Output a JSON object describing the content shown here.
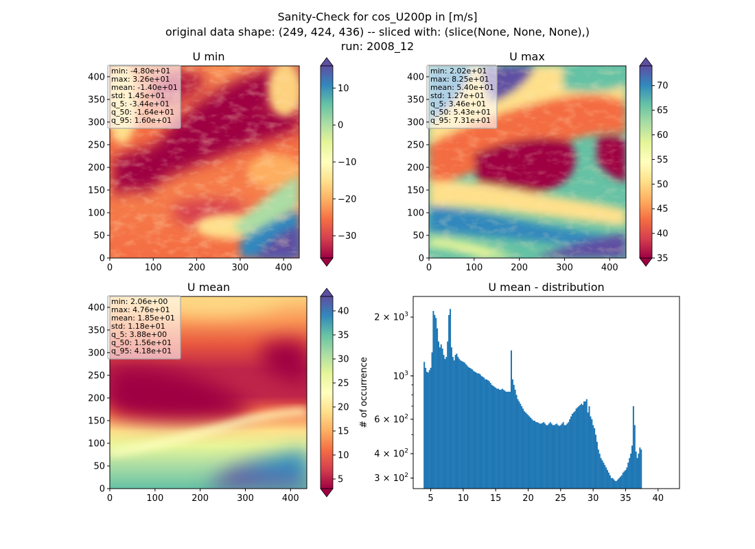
{
  "figure": {
    "title_lines": [
      "Sanity-Check for cos_U200p in [m/s]",
      "original data shape: (249, 424, 436) -- sliced with: (slice(None, None, None),)",
      "run: 2008_12"
    ]
  },
  "chart_data": [
    {
      "id": "umin",
      "type": "heatmap",
      "title": "U min",
      "xlim": [
        0,
        436
      ],
      "ylim": [
        0,
        424
      ],
      "xticks": [
        "0",
        "100",
        "200",
        "300",
        "400"
      ],
      "yticks": [
        "0",
        "50",
        "100",
        "150",
        "200",
        "250",
        "300",
        "350",
        "400"
      ],
      "colorbar": {
        "min": -36,
        "max": 16,
        "ticks": [
          "−30",
          "−20",
          "−10",
          "0",
          "10"
        ],
        "tick_values": [
          -30,
          -20,
          -10,
          0,
          10
        ],
        "extend": "both"
      },
      "stats": [
        "min: -4.80e+01",
        "max: 3.26e+01",
        "mean: -1.40e+01",
        "std: 1.45e+01",
        "q_5: -3.44e+01",
        "q_50: -1.64e+01",
        "q_95: 1.60e+01"
      ]
    },
    {
      "id": "umax",
      "type": "heatmap",
      "title": "U max",
      "xlim": [
        0,
        436
      ],
      "ylim": [
        0,
        424
      ],
      "xticks": [
        "0",
        "100",
        "200",
        "300",
        "400"
      ],
      "yticks": [
        "0",
        "50",
        "100",
        "150",
        "200",
        "250",
        "300",
        "350",
        "400"
      ],
      "colorbar": {
        "min": 35,
        "max": 74,
        "ticks": [
          "35",
          "40",
          "45",
          "50",
          "55",
          "60",
          "65",
          "70"
        ],
        "tick_values": [
          35,
          40,
          45,
          50,
          55,
          60,
          65,
          70
        ],
        "extend": "both"
      },
      "stats": [
        "min: 2.02e+01",
        "max: 8.25e+01",
        "mean: 5.40e+01",
        "std: 1.27e+01",
        "q_5: 3.46e+01",
        "q_50: 5.43e+01",
        "q_95: 7.31e+01"
      ]
    },
    {
      "id": "umean",
      "type": "heatmap",
      "title": "U mean",
      "xlim": [
        0,
        436
      ],
      "ylim": [
        0,
        424
      ],
      "xticks": [
        "0",
        "100",
        "200",
        "300",
        "400"
      ],
      "yticks": [
        "0",
        "50",
        "100",
        "150",
        "200",
        "250",
        "300",
        "350",
        "400"
      ],
      "colorbar": {
        "min": 3,
        "max": 43,
        "ticks": [
          "5",
          "10",
          "15",
          "20",
          "25",
          "30",
          "35",
          "40"
        ],
        "tick_values": [
          5,
          10,
          15,
          20,
          25,
          30,
          35,
          40
        ],
        "extend": "both"
      },
      "stats": [
        "min: 2.06e+00",
        "max: 4.76e+01",
        "mean: 1.85e+01",
        "std: 1.18e+01",
        "q_5: 3.88e+00",
        "q_50: 1.56e+01",
        "q_95: 4.18e+01"
      ]
    },
    {
      "id": "hist",
      "type": "bar",
      "title": "U mean - distribution",
      "ylabel": "# of occurrence",
      "yscale": "log",
      "xlim": [
        2.3,
        43.3
      ],
      "ylim": [
        265,
        2550
      ],
      "xticks": [
        "5",
        "10",
        "15",
        "20",
        "25",
        "30",
        "35",
        "40"
      ],
      "xtick_values": [
        5,
        10,
        15,
        20,
        25,
        30,
        35,
        40
      ],
      "yticks": [
        {
          "value": 300,
          "base": "3 × 10",
          "exp": "2"
        },
        {
          "value": 400,
          "base": "4 × 10",
          "exp": "2"
        },
        {
          "value": 600,
          "base": "6 × 10",
          "exp": "2"
        },
        {
          "value": 1000,
          "base": "10",
          "exp": "3"
        },
        {
          "value": 2000,
          "base": "2 × 10",
          "exp": "3"
        }
      ],
      "bar_color": "#1f77b4",
      "bin_start": 3.9,
      "bin_width": 0.2,
      "values": [
        1180,
        1100,
        1050,
        1040,
        1070,
        1100,
        1320,
        2150,
        2050,
        1980,
        1750,
        1500,
        1400,
        1450,
        1380,
        1280,
        1220,
        1250,
        1500,
        2050,
        2200,
        1400,
        1250,
        1200,
        1280,
        1300,
        1250,
        1220,
        1200,
        1190,
        1180,
        1170,
        1150,
        1130,
        1110,
        1100,
        1090,
        1080,
        1060,
        1050,
        1040,
        1030,
        1030,
        1020,
        1000,
        990,
        980,
        960,
        960,
        950,
        940,
        920,
        900,
        890,
        880,
        870,
        860,
        860,
        850,
        850,
        860,
        850,
        840,
        830,
        830,
        830,
        830,
        1350,
        960,
        900,
        850,
        800,
        760,
        740,
        720,
        700,
        680,
        660,
        650,
        640,
        630,
        620,
        610,
        600,
        590,
        590,
        580,
        580,
        575,
        570,
        570,
        575,
        580,
        570,
        560,
        560,
        570,
        580,
        570,
        560,
        560,
        565,
        570,
        560,
        555,
        560,
        570,
        580,
        560,
        560,
        570,
        580,
        600,
        620,
        640,
        650,
        660,
        680,
        690,
        700,
        710,
        720,
        710,
        740,
        740,
        760,
        650,
        700,
        620,
        600,
        560,
        540,
        500,
        460,
        420,
        400,
        380,
        370,
        360,
        350,
        340,
        330,
        320,
        310,
        300,
        300,
        295,
        290,
        290,
        295,
        300,
        305,
        310,
        320,
        325,
        330,
        340,
        360,
        380,
        400,
        440,
        700,
        560,
        410,
        380,
        400,
        430,
        420
      ]
    }
  ]
}
